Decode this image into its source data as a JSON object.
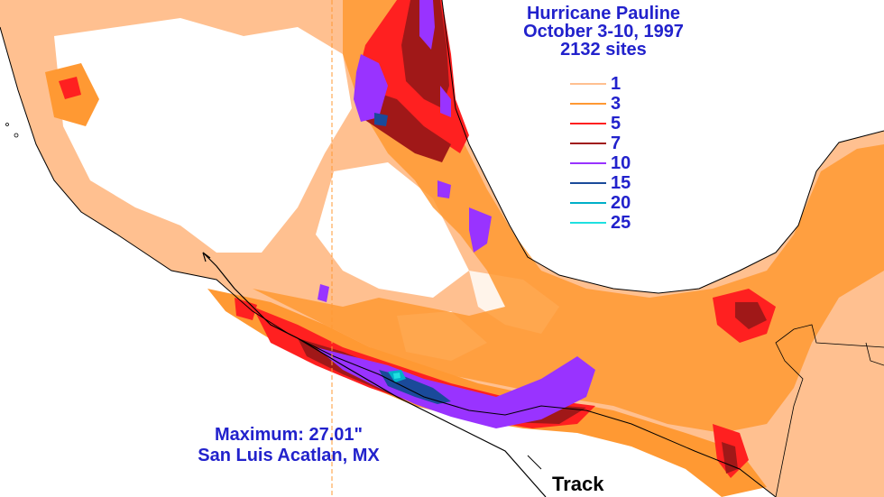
{
  "title": {
    "line1": "Hurricane Pauline",
    "line2": "October 3-10, 1997",
    "line3": "2132 sites"
  },
  "legend": [
    {
      "label": "1",
      "color": "#ffc090"
    },
    {
      "label": "3",
      "color": "#ff9933"
    },
    {
      "label": "5",
      "color": "#ff2020"
    },
    {
      "label": "7",
      "color": "#a01818"
    },
    {
      "label": "10",
      "color": "#9933ff"
    },
    {
      "label": "15",
      "color": "#1a4a9a"
    },
    {
      "label": "20",
      "color": "#00b0c8"
    },
    {
      "label": "25",
      "color": "#20e0e0"
    }
  ],
  "maximum": {
    "line1": "Maximum:  27.01\"",
    "line2": "San Luis Acatlan, MX"
  },
  "track_label": "Track"
}
